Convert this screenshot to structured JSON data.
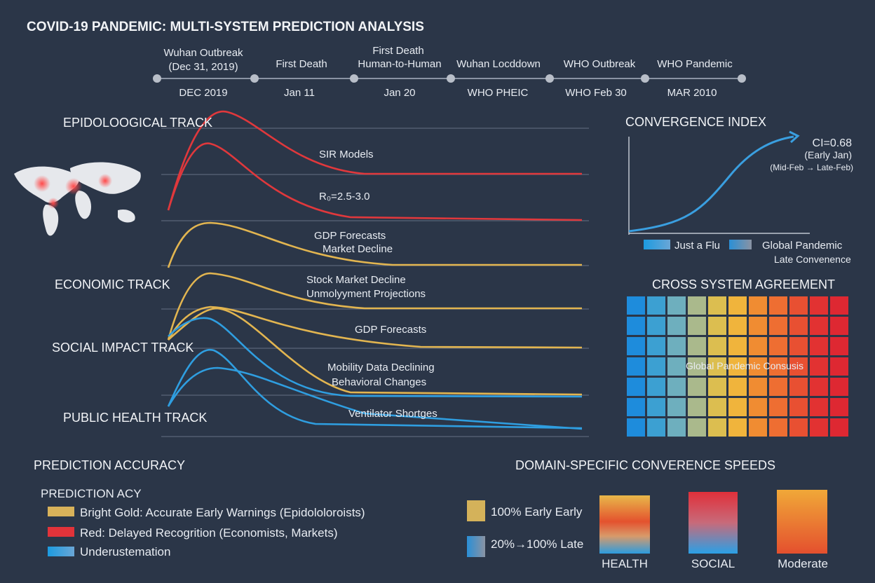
{
  "title": "COVID-19 PANDEMIC: MULTI-SYSTEM PREDICTION ANALYSIS",
  "timeline": {
    "top": [
      [
        "Wuhan Outbreak",
        "(Dec 31, 2019)"
      ],
      [
        "First Death"
      ],
      [
        "First Death",
        "Human-to-Human"
      ],
      [
        "Wuhan Locddown"
      ],
      [
        "WHO Outbreak"
      ],
      [
        "WHO Pandemic"
      ]
    ],
    "bottom": [
      "DEC 2019",
      "Jan 11",
      "Jan 20",
      "WHO PHEIC",
      "WHO Feb 30",
      "MAR 2010"
    ]
  },
  "tracks": [
    "EPIDOLOOGICAL TRACK",
    "ECONOMIC TRACK",
    "SOCIAL IMPACT TRACK",
    "PUBLIC HEALTH TRACK"
  ],
  "annotations": [
    "SIR Models",
    "R₀=2.5-3.0",
    "GDP Forecasts",
    "Market Decline",
    "Stock Market Decline",
    "Unmolyyment Projections",
    "GDP Forecasts",
    "Mobility Data Declining",
    "Behavioral Changes",
    "Ventilator Shortges"
  ],
  "convergence": {
    "title": "CONVERGENCE INDEX",
    "value": "CI=0.68",
    "notes": [
      "(Early Jan)",
      "(Mid-Feb → Late-Feb)"
    ],
    "legend": [
      "Just a Flu",
      "Global Pandemic",
      "Late Convenence"
    ]
  },
  "agreement": {
    "title": "CROSS SYSTEM AGREEMENT",
    "label": "Global Pandemic Consusis"
  },
  "accuracy": {
    "title": "PREDICTION ACCURACY",
    "subtitle": "PREDICTION ACY",
    "legend": [
      "Bright Gold: Accurate Early Warnings (Epidololoroists)",
      "Red: Delayed Recogrition (Economists, Markets)",
      "Underustemation"
    ]
  },
  "speeds": {
    "title": "DOMAIN-SPECIFIC CONVERENCE SPEEDS",
    "legend": [
      "100% Early Early",
      "20%→100% Late"
    ],
    "bars": [
      "HEALTH",
      "SOCIAL",
      "Moderate"
    ]
  }
}
